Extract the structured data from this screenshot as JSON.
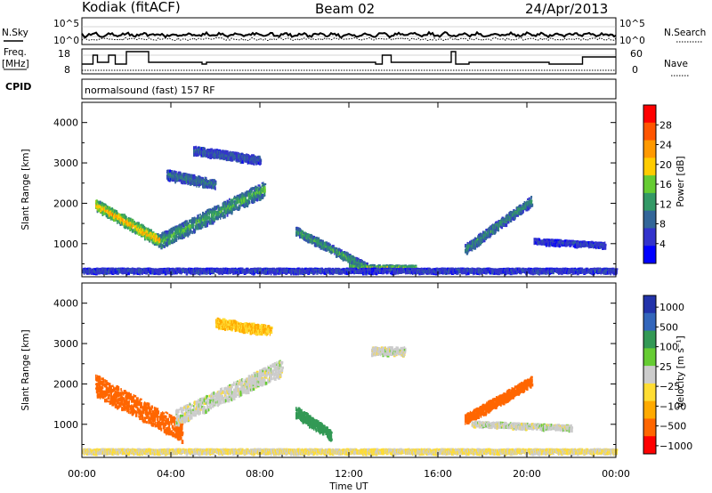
{
  "header": {
    "station": "Kodiak (fitACF)",
    "beam": "Beam 02",
    "date": "24/Apr/2013"
  },
  "strip_panels": {
    "nsky_label": "N.Sky",
    "nsky_ticks": [
      "10^5",
      "10^0"
    ],
    "nsearch_label": "N.Search",
    "nsearch_ticks": [
      "10^5",
      "10^0"
    ],
    "freq_label_line1": "Freq.",
    "freq_label_line2": "[MHz]",
    "freq_ticks": [
      "18",
      "8"
    ],
    "nave_label": "Nave",
    "nave_ticks": [
      "60",
      "0"
    ],
    "cpid_label": "CPID",
    "cpid_text": "normalsound (fast) 157 RF"
  },
  "power_scale": {
    "title": "Power [dB]",
    "labels": [
      "28",
      "24",
      "20",
      "16",
      "12",
      "8",
      "4"
    ],
    "colors": [
      "#ff0000",
      "#ff5500",
      "#ff9900",
      "#ffcc00",
      "#66cc33",
      "#339966",
      "#336699",
      "#3333cc",
      "#0000ff"
    ]
  },
  "velocity_scale": {
    "title": "Velocity [m s⁻¹]",
    "labels": [
      "1000",
      "500",
      "100",
      "25",
      "−25",
      "−100",
      "−500",
      "−1000"
    ],
    "colors": [
      "#2233aa",
      "#3366bb",
      "#339955",
      "#66cc33",
      "#cccccc",
      "#ffdd33",
      "#ffaa00",
      "#ff6600",
      "#ff0000"
    ]
  },
  "axes": {
    "ylabel": "Slant Range [km]",
    "xlabel": "Time UT",
    "x_ticks": [
      "00:00",
      "04:00",
      "08:00",
      "12:00",
      "16:00",
      "20:00",
      "00:00"
    ]
  },
  "chart_data": [
    {
      "type": "heatmap",
      "title": "",
      "quantity": "Power",
      "xlabel": "Time UT",
      "ylabel": "Slant Range [km]",
      "xlim_hours_ut": [
        0,
        24
      ],
      "ylim_km": [
        180,
        4500
      ],
      "y_ticks": [
        1000,
        2000,
        3000,
        4000
      ],
      "colorbar_ticks_db": [
        4,
        8,
        12,
        16,
        20,
        24,
        28
      ],
      "echo_regions": [
        {
          "t_start": 0.6,
          "t_end": 3.5,
          "range_start": 1950,
          "range_end": 1050,
          "thickness": 260,
          "value": 24
        },
        {
          "t_start": 3.5,
          "t_end": 8.2,
          "range_start": 1050,
          "range_end": 2350,
          "thickness": 350,
          "value": 14
        },
        {
          "t_start": 3.8,
          "t_end": 6.0,
          "range_start": 2700,
          "range_end": 2450,
          "thickness": 220,
          "value": 10
        },
        {
          "t_start": 5.0,
          "t_end": 8.0,
          "range_start": 3300,
          "range_end": 3050,
          "thickness": 180,
          "value": 8
        },
        {
          "t_start": 9.6,
          "t_end": 12.8,
          "range_start": 1300,
          "range_end": 400,
          "thickness": 180,
          "value": 14
        },
        {
          "t_start": 12.0,
          "t_end": 15.0,
          "range_start": 400,
          "range_end": 380,
          "thickness": 110,
          "value": 18
        },
        {
          "t_start": 17.2,
          "t_end": 20.2,
          "range_start": 850,
          "range_end": 2050,
          "thickness": 220,
          "value": 12
        },
        {
          "t_start": 20.3,
          "t_end": 23.5,
          "range_start": 1050,
          "range_end": 950,
          "thickness": 110,
          "value": 6
        },
        {
          "t_start": 0.0,
          "t_end": 24.0,
          "range_start": 320,
          "range_end": 320,
          "thickness": 90,
          "value": 6
        }
      ]
    },
    {
      "type": "heatmap",
      "title": "",
      "quantity": "Velocity",
      "xlabel": "Time UT",
      "ylabel": "Slant Range [km]",
      "xlim_hours_ut": [
        0,
        24
      ],
      "ylim_km": [
        180,
        4500
      ],
      "y_ticks": [
        1000,
        2000,
        3000,
        4000
      ],
      "colorbar_ticks_ms": [
        1000,
        500,
        100,
        25,
        -25,
        -100,
        -500,
        -1000
      ],
      "echo_regions": [
        {
          "t_start": 0.6,
          "t_end": 4.5,
          "range_start": 1950,
          "range_end": 800,
          "thickness": 500,
          "value": -500
        },
        {
          "t_start": 4.2,
          "t_end": 9.0,
          "range_start": 1150,
          "range_end": 2400,
          "thickness": 380,
          "value": 0
        },
        {
          "t_start": 6.0,
          "t_end": 8.5,
          "range_start": 3500,
          "range_end": 3300,
          "thickness": 220,
          "value": -100
        },
        {
          "t_start": 9.6,
          "t_end": 11.2,
          "range_start": 1300,
          "range_end": 700,
          "thickness": 250,
          "value": 200
        },
        {
          "t_start": 13.0,
          "t_end": 14.5,
          "range_start": 2800,
          "range_end": 2800,
          "thickness": 180,
          "value": 0
        },
        {
          "t_start": 17.2,
          "t_end": 20.2,
          "range_start": 1100,
          "range_end": 2050,
          "thickness": 230,
          "value": -500
        },
        {
          "t_start": 17.5,
          "t_end": 22.0,
          "range_start": 1000,
          "range_end": 900,
          "thickness": 110,
          "value": 0
        },
        {
          "t_start": 0.0,
          "t_end": 24.0,
          "range_start": 320,
          "range_end": 320,
          "thickness": 90,
          "value": -25
        }
      ]
    }
  ]
}
